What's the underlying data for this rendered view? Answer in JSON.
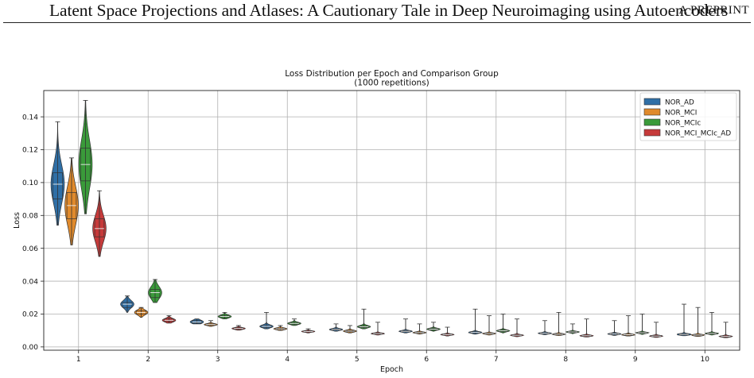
{
  "header": {
    "title": "Latent Space Projections and Atlases: A Cautionary Tale in Deep Neuroimaging using Autoencoders",
    "tag": "A PREPRINT"
  },
  "chart_data": {
    "type": "violin",
    "title": "Loss Distribution per Epoch and Comparison Group\n(1000 repetitions)",
    "xlabel": "Epoch",
    "ylabel": "Loss",
    "categories": [
      "1",
      "2",
      "3",
      "4",
      "5",
      "6",
      "7",
      "8",
      "9",
      "10"
    ],
    "ylim": [
      -0.002,
      0.156
    ],
    "yticks": [
      0.0,
      0.02,
      0.04,
      0.06,
      0.08,
      0.1,
      0.12,
      0.14
    ],
    "ytick_labels": [
      "0.00",
      "0.02",
      "0.04",
      "0.06",
      "0.08",
      "0.10",
      "0.12",
      "0.14"
    ],
    "grid": true,
    "legend_position": "top-right",
    "series": [
      {
        "name": "NOR_AD",
        "color": "#2f6fa6",
        "epochs": [
          {
            "min": 0.074,
            "q1": 0.09,
            "median": 0.099,
            "q3": 0.106,
            "max": 0.137
          },
          {
            "min": 0.021,
            "q1": 0.024,
            "median": 0.026,
            "q3": 0.027,
            "max": 0.031
          },
          {
            "min": 0.014,
            "q1": 0.0145,
            "median": 0.0152,
            "q3": 0.016,
            "max": 0.017
          },
          {
            "min": 0.011,
            "q1": 0.0118,
            "median": 0.0125,
            "q3": 0.013,
            "max": 0.021
          },
          {
            "min": 0.0095,
            "q1": 0.0102,
            "median": 0.0106,
            "q3": 0.011,
            "max": 0.014
          },
          {
            "min": 0.0085,
            "q1": 0.0092,
            "median": 0.0095,
            "q3": 0.0099,
            "max": 0.017
          },
          {
            "min": 0.0078,
            "q1": 0.0085,
            "median": 0.0088,
            "q3": 0.0092,
            "max": 0.023
          },
          {
            "min": 0.0074,
            "q1": 0.008,
            "median": 0.0083,
            "q3": 0.0086,
            "max": 0.016
          },
          {
            "min": 0.007,
            "q1": 0.0076,
            "median": 0.0079,
            "q3": 0.0082,
            "max": 0.016
          },
          {
            "min": 0.0068,
            "q1": 0.0073,
            "median": 0.0076,
            "q3": 0.0079,
            "max": 0.026
          }
        ]
      },
      {
        "name": "NOR_MCI",
        "color": "#e08a2c",
        "epochs": [
          {
            "min": 0.062,
            "q1": 0.078,
            "median": 0.086,
            "q3": 0.094,
            "max": 0.115
          },
          {
            "min": 0.018,
            "q1": 0.02,
            "median": 0.021,
            "q3": 0.022,
            "max": 0.024
          },
          {
            "min": 0.0125,
            "q1": 0.0132,
            "median": 0.0136,
            "q3": 0.014,
            "max": 0.016
          },
          {
            "min": 0.01,
            "q1": 0.0106,
            "median": 0.011,
            "q3": 0.0114,
            "max": 0.013
          },
          {
            "min": 0.0085,
            "q1": 0.0092,
            "median": 0.0096,
            "q3": 0.01,
            "max": 0.013
          },
          {
            "min": 0.0078,
            "q1": 0.0084,
            "median": 0.0087,
            "q3": 0.009,
            "max": 0.014
          },
          {
            "min": 0.0072,
            "q1": 0.0078,
            "median": 0.0081,
            "q3": 0.0084,
            "max": 0.019
          },
          {
            "min": 0.0069,
            "q1": 0.0074,
            "median": 0.0077,
            "q3": 0.008,
            "max": 0.021
          },
          {
            "min": 0.0066,
            "q1": 0.0071,
            "median": 0.0074,
            "q3": 0.0077,
            "max": 0.019
          },
          {
            "min": 0.0064,
            "q1": 0.0069,
            "median": 0.0072,
            "q3": 0.0075,
            "max": 0.024
          }
        ]
      },
      {
        "name": "NOR_MCIc",
        "color": "#3a9a3a",
        "epochs": [
          {
            "min": 0.081,
            "q1": 0.101,
            "median": 0.111,
            "q3": 0.121,
            "max": 0.15
          },
          {
            "min": 0.027,
            "q1": 0.03,
            "median": 0.033,
            "q3": 0.035,
            "max": 0.041
          },
          {
            "min": 0.017,
            "q1": 0.0178,
            "median": 0.0185,
            "q3": 0.019,
            "max": 0.021
          },
          {
            "min": 0.013,
            "q1": 0.0138,
            "median": 0.0143,
            "q3": 0.0148,
            "max": 0.017
          },
          {
            "min": 0.011,
            "q1": 0.0118,
            "median": 0.0123,
            "q3": 0.0128,
            "max": 0.023
          },
          {
            "min": 0.0095,
            "q1": 0.0104,
            "median": 0.0108,
            "q3": 0.0112,
            "max": 0.015
          },
          {
            "min": 0.0085,
            "q1": 0.0094,
            "median": 0.0098,
            "q3": 0.0102,
            "max": 0.02
          },
          {
            "min": 0.008,
            "q1": 0.0088,
            "median": 0.0091,
            "q3": 0.0094,
            "max": 0.014
          },
          {
            "min": 0.0076,
            "q1": 0.0083,
            "median": 0.0086,
            "q3": 0.0089,
            "max": 0.02
          },
          {
            "min": 0.0072,
            "q1": 0.0079,
            "median": 0.0082,
            "q3": 0.0085,
            "max": 0.021
          }
        ]
      },
      {
        "name": "NOR_MCI_MCIc_AD",
        "color": "#c63a3a",
        "epochs": [
          {
            "min": 0.055,
            "q1": 0.067,
            "median": 0.072,
            "q3": 0.078,
            "max": 0.095
          },
          {
            "min": 0.0145,
            "q1": 0.0155,
            "median": 0.0162,
            "q3": 0.017,
            "max": 0.019
          },
          {
            "min": 0.0102,
            "q1": 0.0108,
            "median": 0.0112,
            "q3": 0.0116,
            "max": 0.013
          },
          {
            "min": 0.0085,
            "q1": 0.0091,
            "median": 0.0094,
            "q3": 0.0097,
            "max": 0.011
          },
          {
            "min": 0.0072,
            "q1": 0.0078,
            "median": 0.0081,
            "q3": 0.0084,
            "max": 0.015
          },
          {
            "min": 0.0066,
            "q1": 0.0072,
            "median": 0.0075,
            "q3": 0.0078,
            "max": 0.012
          },
          {
            "min": 0.0062,
            "q1": 0.0068,
            "median": 0.0071,
            "q3": 0.0074,
            "max": 0.017
          },
          {
            "min": 0.006,
            "q1": 0.0065,
            "median": 0.0068,
            "q3": 0.0071,
            "max": 0.017
          },
          {
            "min": 0.0058,
            "q1": 0.0063,
            "median": 0.0066,
            "q3": 0.0069,
            "max": 0.015
          },
          {
            "min": 0.0056,
            "q1": 0.0061,
            "median": 0.0064,
            "q3": 0.0067,
            "max": 0.015
          }
        ]
      }
    ]
  }
}
